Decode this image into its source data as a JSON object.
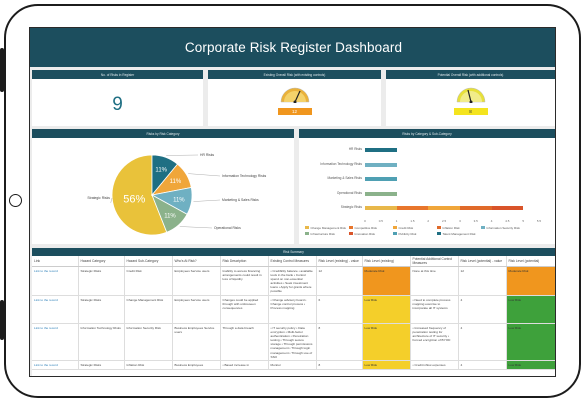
{
  "dashboard": {
    "title": "Corporate Risk Register Dashboard"
  },
  "kpis": {
    "risk_count_title": "No. of Risks in Register",
    "risk_count": "9",
    "existing_title": "Existing Overall Risk (with existing controls)",
    "existing_value": "12",
    "existing_color": "#f0961e",
    "potential_title": "Potential Overall Risk (with additional controls)",
    "potential_value": "8",
    "potential_color": "#f4e41e"
  },
  "pie_panel": {
    "title": "Risks by Risk Category"
  },
  "bar_panel": {
    "title": "Risks by Category & Sub-Category"
  },
  "chart_data": [
    {
      "type": "pie",
      "title": "Risks by Risk Category",
      "labels": [
        "Strategic Risks",
        "HR Risks",
        "Information Technology Risks",
        "Marketing & Sales Risks",
        "Operational Risks"
      ],
      "values": [
        56,
        11,
        11,
        11,
        11
      ],
      "value_labels": [
        "56%",
        "11%",
        "11%",
        "11%",
        "11%"
      ],
      "colors": [
        "#e9c23a",
        "#1f6f83",
        "#f0a63a",
        "#6fb0c2",
        "#8bb28b"
      ]
    },
    {
      "type": "bar",
      "title": "Risks by Category & Sub-Category",
      "categories": [
        "HR Risks",
        "Information Technology Risks",
        "Marketing & Sales Risks",
        "Operational Risks",
        "Strategic Risks"
      ],
      "series": [
        {
          "name": "Change Management Risk",
          "color": "#e8b84a",
          "values": [
            0,
            0,
            0,
            0,
            1
          ]
        },
        {
          "name": "Competitive Risk",
          "color": "#e8762c",
          "values": [
            0,
            0,
            0,
            0,
            1
          ]
        },
        {
          "name": "Credit Risk",
          "color": "#f0a63a",
          "values": [
            0,
            0,
            0,
            0,
            1
          ]
        },
        {
          "name": "Inflation Risk",
          "color": "#e06a2a",
          "values": [
            0,
            0,
            0,
            0,
            1
          ]
        },
        {
          "name": "Information Security Risk",
          "color": "#6fb0c2",
          "values": [
            0,
            1,
            0,
            0,
            0
          ]
        },
        {
          "name": "Infrastructure Risk",
          "color": "#8bb28b",
          "values": [
            0,
            0,
            0,
            1,
            0
          ]
        },
        {
          "name": "Innovation Risk",
          "color": "#d9542a",
          "values": [
            0,
            0,
            0,
            0,
            1
          ]
        },
        {
          "name": "Publicity Risk",
          "color": "#4fa0b3",
          "values": [
            0,
            0,
            1,
            0,
            0
          ]
        },
        {
          "name": "Talent Management Risk",
          "color": "#1f6f83",
          "values": [
            1,
            0,
            0,
            0,
            0
          ]
        }
      ],
      "xticks": [
        "0",
        "0.5",
        "1",
        "1.5",
        "2",
        "2.5",
        "3",
        "3.5",
        "4",
        "4.5",
        "5",
        "5.5"
      ],
      "xlim": [
        0,
        5.5
      ],
      "legend": "bottom"
    }
  ],
  "table": {
    "title": "Risk Summary",
    "columns": [
      "Link",
      "Hazard Category",
      "Hazard Sub-Category",
      "Who's At Risk?",
      "Risk Description",
      "Existing Control Measures",
      "Risk Level (existing) - value",
      "Risk Level (existing)",
      "Potential Additional Control Measures",
      "Risk Level (potential) - value",
      "Risk Level (potential)"
    ],
    "rows": [
      {
        "link": "Link to the record",
        "category": "Strategic Risks",
        "sub": "Credit Risk",
        "who": "Employees  Service users",
        "desc": "Inability to access financing arrangements could result in loss of liquidity",
        "controls": "• Credibility balance • available tools in the bank • Control spend on non-essential activities • Seek investment loans • Apply for grants where possible",
        "val": "12",
        "level": "Moderate Risk",
        "level_class": "lvl-orange",
        "add": "None at this time",
        "pval": "12",
        "plevel": "Moderate Risk",
        "plevel_class": "lvl-orange"
      },
      {
        "link": "Link to the record",
        "category": "Strategic Risks",
        "sub": "Change Management Risk",
        "who": "Employees  Service users",
        "desc": "Changes could be applied through with unforeseen consequences",
        "controls": "• Change advisory board • Change control process • Process mapping",
        "val": "6",
        "level": "Low Risk",
        "level_class": "lvl-yellow",
        "add": "• Need to complete process mapping exercise to incorporate all IT systems",
        "pval": "4",
        "plevel": "Low Risk",
        "plevel_class": "lvl-green"
      },
      {
        "link": "Link to the record",
        "category": "Information Technology Risks",
        "sub": "Information Security Risk",
        "who": "Business  Employees  Service users",
        "desc": "Through a data breach",
        "controls": "• IT security policy • Data encryption • Multi-factor authentication • Penetration testing • Through secure storage • Through permissions management • Through login management • Through use of SSO",
        "val": "8",
        "level": "Low Risk",
        "level_class": "lvl-yellow",
        "add": "• Increased frequency of penetration testing for architecture of IT security • Forced encryption of BYOD",
        "pval": "4",
        "plevel": "Low Risk",
        "plevel_class": "lvl-green"
      },
      {
        "link": "Link to the record",
        "category": "Strategic Risks",
        "sub": "Inflation Risk",
        "who": "Business  Employees",
        "desc": "• Based increase in",
        "controls": "Monitor",
        "val": "8",
        "level": "Low Risk",
        "level_class": "lvl-yellow",
        "add": "• Credit inflow expenses",
        "pval": "4",
        "plevel": "Low Risk",
        "plevel_class": "lvl-green"
      }
    ]
  }
}
